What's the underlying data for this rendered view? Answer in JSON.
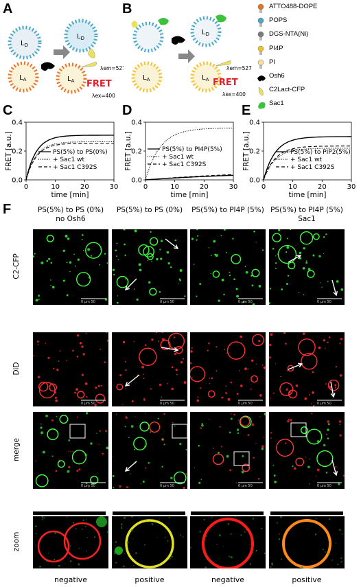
{
  "panels": {
    "A": "A",
    "B": "B",
    "C": "C",
    "D": "D",
    "E": "E",
    "F": "F"
  },
  "schematic": {
    "LD": "L",
    "LD_sub": "D",
    "LA": "L",
    "LA_sub": "A",
    "fret": "FRET",
    "lambda_em": "λem=527",
    "lambda_ex": "λex=400"
  },
  "legend": [
    {
      "label": "ATTO488-DOPE",
      "color": "#e8742a",
      "icon": "lipid-orange-icon"
    },
    {
      "label": "POPS",
      "color": "#4aa8c8",
      "icon": "lipid-blue-icon"
    },
    {
      "label": "DGS-NTA(Ni)",
      "color": "#7a7a7a",
      "icon": "lipid-gray-icon"
    },
    {
      "label": "PI4P",
      "color": "#f2c230",
      "icon": "lipid-yellow-icon"
    },
    {
      "label": "PI",
      "color": "#f6dfa0",
      "icon": "lipid-pale-icon"
    },
    {
      "label": "Osh6",
      "color": "#000000",
      "icon": "osh6-icon"
    },
    {
      "label": "C2Lact-CFP",
      "color": "#e9e25a",
      "icon": "c2lact-icon"
    },
    {
      "label": "Sac1",
      "color": "#3ec23e",
      "icon": "sac1-icon"
    }
  ],
  "chart_data": [
    {
      "type": "line",
      "panel": "C",
      "xlabel": "time [min]",
      "ylabel": "FRET [a.u.]",
      "xlim": [
        0,
        30
      ],
      "ylim": [
        0,
        0.4
      ],
      "xticks": [
        0,
        10,
        20,
        30
      ],
      "yticks": [
        0.0,
        0.2,
        0.4
      ],
      "legend": [
        "PS(5%) to PS(0%)",
        "+ Sac1 wt",
        "+ Sac1 C392S"
      ],
      "legend_position": "center-right",
      "series": [
        {
          "name": "PS(5%) to PS(0%)",
          "style": "solid",
          "amp": 0.31,
          "tau": 3.5
        },
        {
          "name": "+ Sac1 wt",
          "style": "dotted",
          "amp": 0.265,
          "tau": 3.5
        },
        {
          "name": "+ Sac1 C392S",
          "style": "dashed",
          "amp": 0.255,
          "tau": 3.5
        }
      ]
    },
    {
      "type": "line",
      "panel": "D",
      "xlabel": "time [min]",
      "ylabel": "FRET [a.u.]",
      "xlim": [
        0,
        30
      ],
      "ylim": [
        0,
        0.4
      ],
      "xticks": [
        0,
        10,
        20,
        30
      ],
      "yticks": [
        0.0,
        0.2,
        0.4
      ],
      "legend": [
        "PS(5%) to PI4P(5%)",
        "+ Sac1 wt",
        "+ Sac1 C392S"
      ],
      "legend_position": "center-left",
      "series": [
        {
          "name": "PS(5%) to PI4P(5%)",
          "style": "solid",
          "amp": 0.06,
          "tau": 40
        },
        {
          "name": "+ Sac1 wt",
          "style": "dotted",
          "amp": 0.36,
          "tau": 5
        },
        {
          "name": "+ Sac1 C392S",
          "style": "dashed",
          "amp": 0.07,
          "tau": 40
        }
      ]
    },
    {
      "type": "line",
      "panel": "E",
      "xlabel": "time [min]",
      "ylabel": "FRET [a.u.]",
      "xlim": [
        0,
        30
      ],
      "ylim": [
        0,
        0.4
      ],
      "xticks": [
        0,
        10,
        20,
        30
      ],
      "yticks": [
        0.0,
        0.2,
        0.4
      ],
      "legend": [
        "PS(5%) to PIP2(5%)",
        "+ Sac1 wt",
        "+ Sac1 C392S"
      ],
      "legend_position": "center-right",
      "series": [
        {
          "name": "PS(5%) to PIP2(5%)",
          "style": "solid",
          "amp": 0.3,
          "tau": 4
        },
        {
          "name": "+ Sac1 wt",
          "style": "dotted",
          "amp": 0.22,
          "tau": 4
        },
        {
          "name": "+ Sac1 C392S",
          "style": "dashed",
          "amp": 0.235,
          "tau": 4
        }
      ]
    }
  ],
  "microscopy": {
    "columns": [
      "PS(5%) to PS (0%)\nno Osh6",
      "PS(5%) to PS (0%)",
      "PS(5%) to PI4P (5%)",
      "PS(5%) to PI4P (5%)\nSac1"
    ],
    "rows": [
      "C2-CFP",
      "DiD",
      "merge",
      "zoom"
    ],
    "scalebar": "0   µm   50",
    "bottom": [
      "negative",
      "positive",
      "negative",
      "positive"
    ]
  }
}
